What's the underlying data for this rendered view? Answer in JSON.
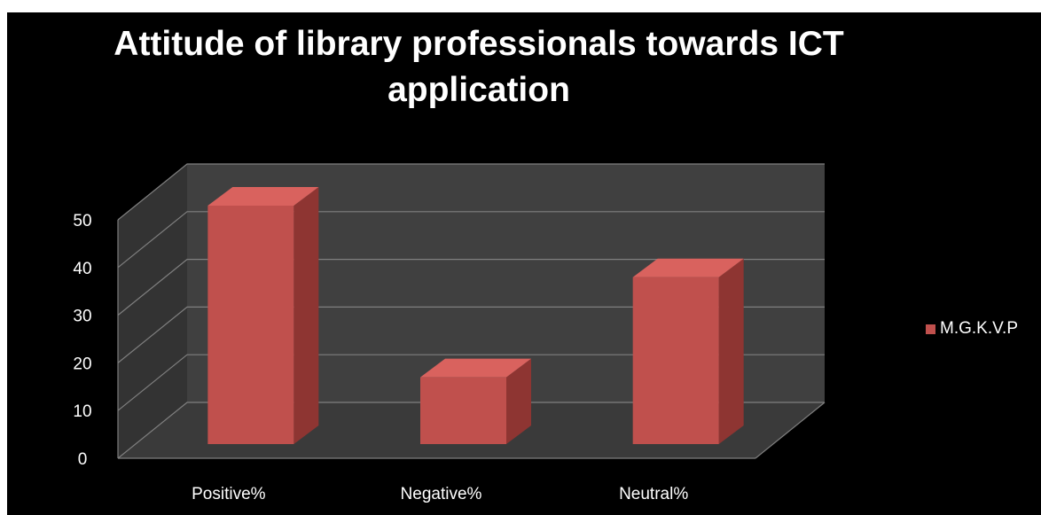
{
  "chart_data": {
    "type": "bar",
    "title_lines": [
      "Attitude of library professionals towards ICT",
      "application"
    ],
    "categories": [
      "Positive%",
      "Negative%",
      "Neutral%"
    ],
    "series": [
      {
        "name": "M.G.K.V.P",
        "values": [
          50,
          14,
          35
        ],
        "color": "#c0504d"
      }
    ],
    "ylim": [
      0,
      50
    ],
    "y_ticks": [
      "0",
      "10",
      "20",
      "30",
      "40",
      "50"
    ],
    "grid": true,
    "legend_position": "right",
    "style": "3d-column",
    "colors": {
      "background": "#000000",
      "walls": "#404040",
      "gridline": "#7f7f7f",
      "text": "#ffffff"
    }
  }
}
